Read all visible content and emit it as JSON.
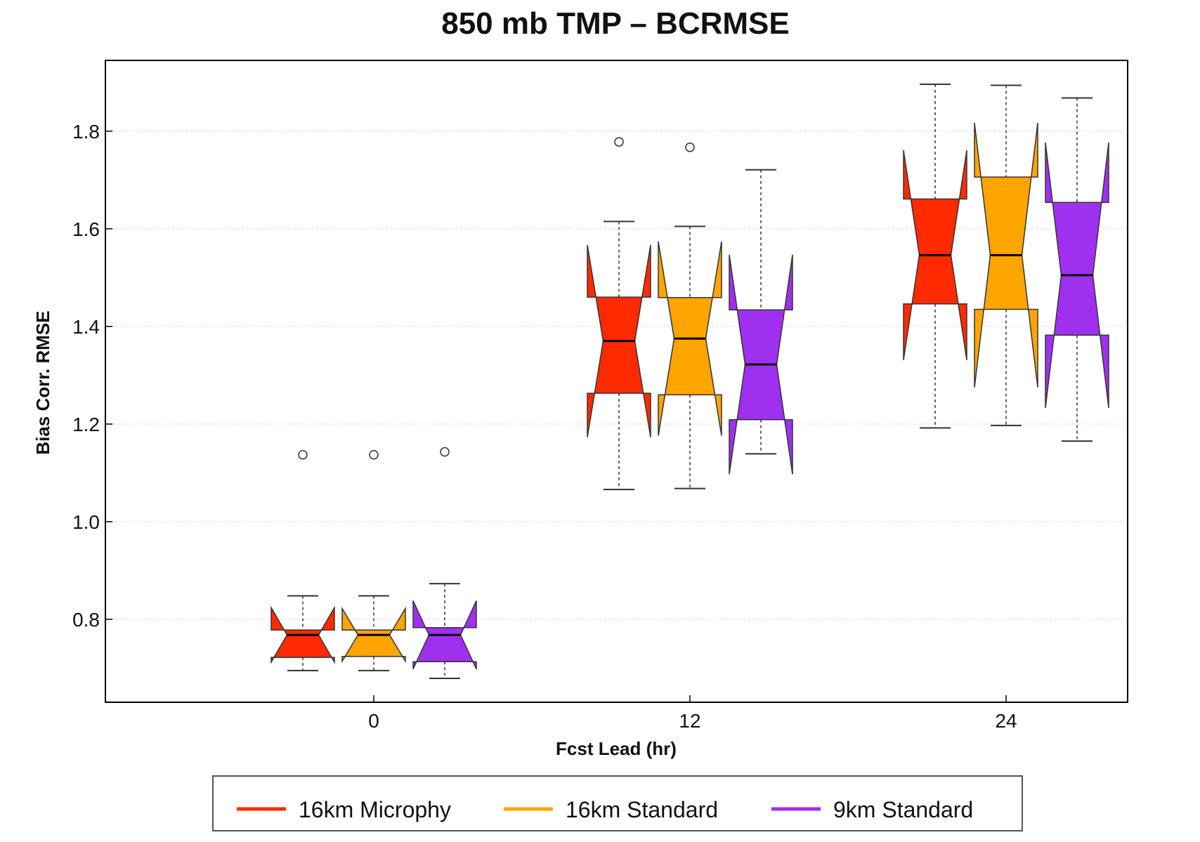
{
  "chart_data": {
    "type": "boxplot",
    "title": "850 mb TMP – BCRMSE",
    "xlabel": "Fcst Lead (hr)",
    "ylabel": "Bias Corr. RMSE",
    "ylim": [
      0.63,
      1.945
    ],
    "y_ticks": [
      "0.8",
      "1.0",
      "1.2",
      "1.4",
      "1.6",
      "1.8"
    ],
    "categories": [
      "0",
      "12",
      "24"
    ],
    "grid": true,
    "legend_position": "bottom",
    "notched": true,
    "series": [
      {
        "name": "16km Microphy",
        "color": "#ff2a00",
        "boxes": [
          {
            "whisker_low": 0.695,
            "q1": 0.722,
            "median": 0.768,
            "q3": 0.778,
            "whisker_high": 0.848,
            "outliers": [
              1.137
            ]
          },
          {
            "whisker_low": 1.066,
            "q1": 1.263,
            "median": 1.37,
            "q3": 1.46,
            "whisker_high": 1.615,
            "outliers": [
              1.778
            ]
          },
          {
            "whisker_low": 1.192,
            "q1": 1.446,
            "median": 1.546,
            "q3": 1.661,
            "whisker_high": 1.896,
            "outliers": []
          }
        ]
      },
      {
        "name": "16km Standard",
        "color": "#ffa500",
        "boxes": [
          {
            "whisker_low": 0.695,
            "q1": 0.724,
            "median": 0.768,
            "q3": 0.778,
            "whisker_high": 0.848,
            "outliers": [
              1.137
            ]
          },
          {
            "whisker_low": 1.068,
            "q1": 1.26,
            "median": 1.375,
            "q3": 1.459,
            "whisker_high": 1.605,
            "outliers": [
              1.767
            ]
          },
          {
            "whisker_low": 1.197,
            "q1": 1.435,
            "median": 1.546,
            "q3": 1.706,
            "whisker_high": 1.894,
            "outliers": []
          }
        ]
      },
      {
        "name": "9km Standard",
        "color": "#a030f0",
        "boxes": [
          {
            "whisker_low": 0.679,
            "q1": 0.713,
            "median": 0.768,
            "q3": 0.783,
            "whisker_high": 0.873,
            "outliers": [
              1.143
            ]
          },
          {
            "whisker_low": 1.139,
            "q1": 1.209,
            "median": 1.322,
            "q3": 1.434,
            "whisker_high": 1.721,
            "outliers": []
          },
          {
            "whisker_low": 1.165,
            "q1": 1.382,
            "median": 1.505,
            "q3": 1.654,
            "whisker_high": 1.868,
            "outliers": []
          }
        ]
      }
    ]
  }
}
